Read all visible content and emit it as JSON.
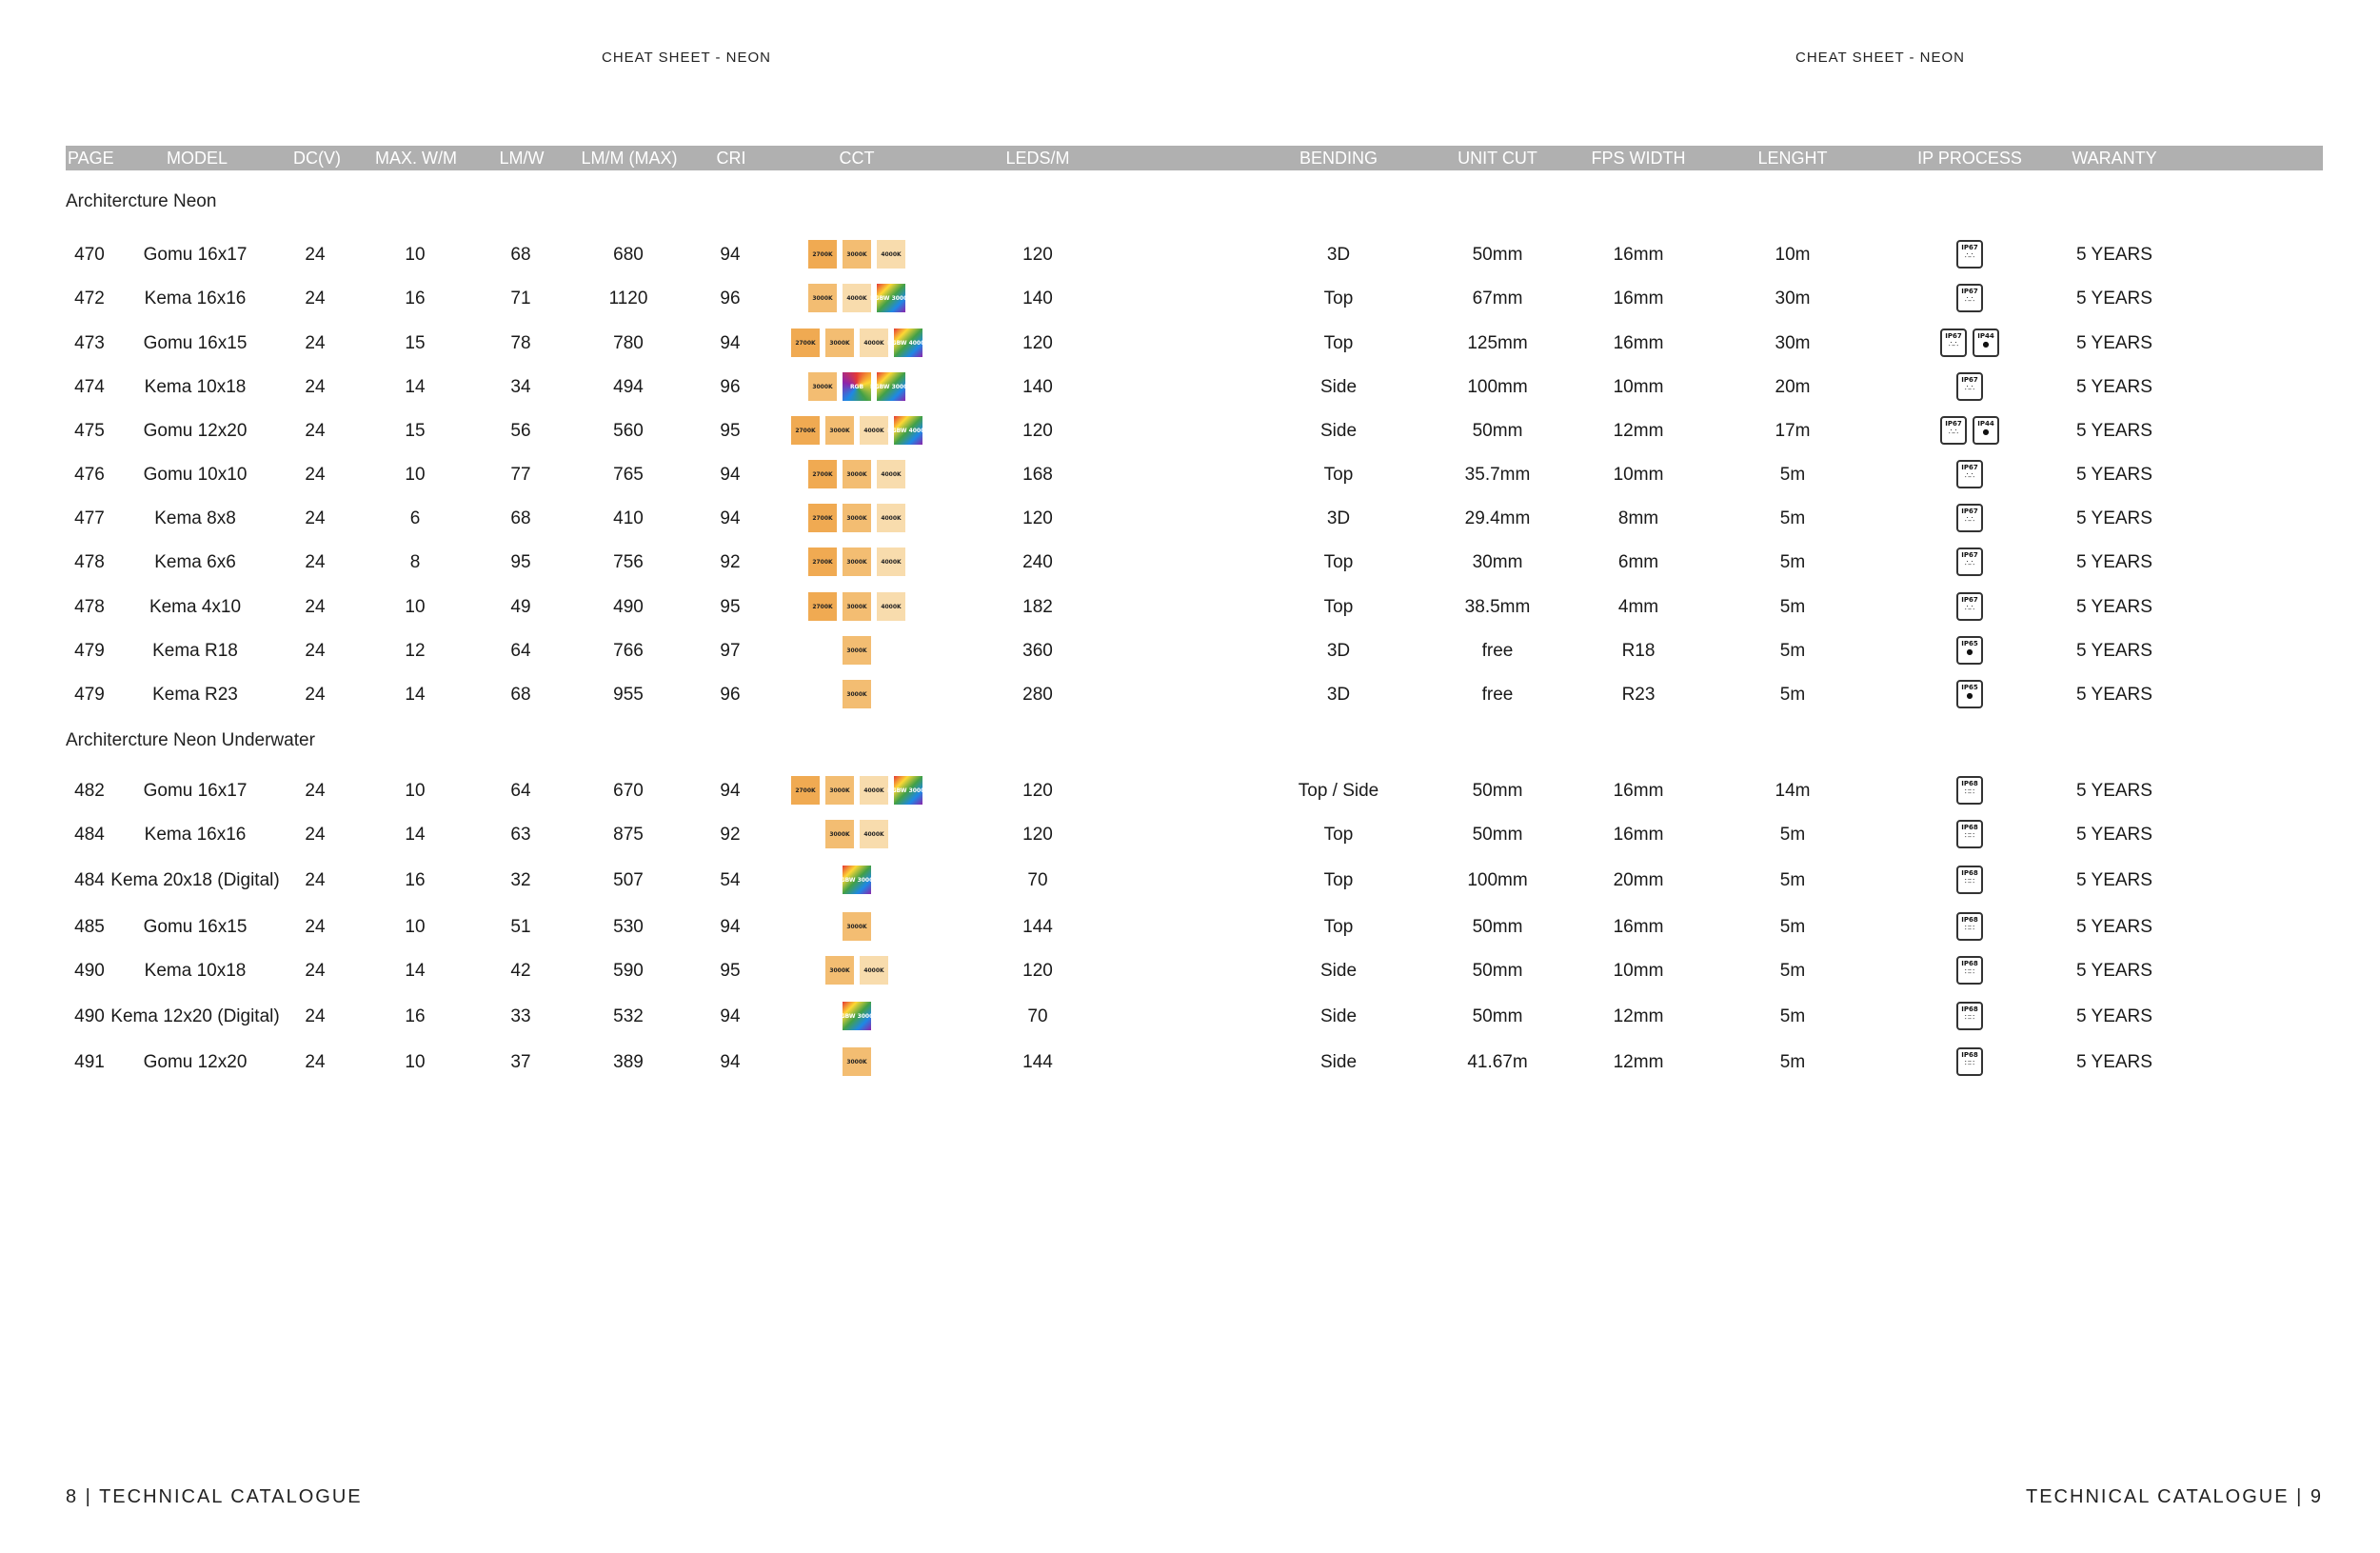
{
  "running_head_left": "CHEAT SHEET - NEON",
  "running_head_right": "CHEAT SHEET - NEON",
  "columns": [
    {
      "key": "page",
      "label": "PAGE"
    },
    {
      "key": "model",
      "label": "MODEL"
    },
    {
      "key": "dcv",
      "label": "DC(V)"
    },
    {
      "key": "maxw",
      "label": "MAX. W/M"
    },
    {
      "key": "lmw",
      "label": "LM/W"
    },
    {
      "key": "lmm",
      "label": "LM/M (MAX)"
    },
    {
      "key": "cri",
      "label": "CRI"
    },
    {
      "key": "cct",
      "label": "CCT"
    },
    {
      "key": "leds",
      "label": "LEDS/M"
    },
    {
      "key": "bending",
      "label": "BENDING"
    },
    {
      "key": "unitcut",
      "label": "UNIT CUT"
    },
    {
      "key": "fpswidth",
      "label": "FPS WIDTH"
    },
    {
      "key": "length",
      "label": "LENGHT"
    },
    {
      "key": "ip",
      "label": "IP PROCESS"
    },
    {
      "key": "warranty",
      "label": "WARANTY"
    }
  ],
  "sections": [
    {
      "title": "Architercture Neon",
      "rows": [
        {
          "page": "470",
          "model": "Gomu 16x17",
          "dcv": "24",
          "maxw": "10",
          "lmw": "68",
          "lmm": "680",
          "cri": "94",
          "cct": [
            "2700K",
            "3000K",
            "4000K"
          ],
          "leds": "120",
          "bending": "3D",
          "unitcut": "50mm",
          "fpswidth": "16mm",
          "length": "10m",
          "ip": [
            "IP67"
          ],
          "warranty": "5 YEARS"
        },
        {
          "page": "472",
          "model": "Kema 16x16",
          "dcv": "24",
          "maxw": "16",
          "lmw": "71",
          "lmm": "1120",
          "cri": "96",
          "cct": [
            "3000K",
            "4000K",
            "RGBW 3000K"
          ],
          "leds": "140",
          "bending": "Top",
          "unitcut": "67mm",
          "fpswidth": "16mm",
          "length": "30m",
          "ip": [
            "IP67"
          ],
          "warranty": "5 YEARS"
        },
        {
          "page": "473",
          "model": "Gomu 16x15",
          "dcv": "24",
          "maxw": "15",
          "lmw": "78",
          "lmm": "780",
          "cri": "94",
          "cct": [
            "2700K",
            "3000K",
            "4000K",
            "RGBW 4000K"
          ],
          "leds": "120",
          "bending": "Top",
          "unitcut": "125mm",
          "fpswidth": "16mm",
          "length": "30m",
          "ip": [
            "IP67",
            "IP44"
          ],
          "warranty": "5 YEARS"
        },
        {
          "page": "474",
          "model": "Kema 10x18",
          "dcv": "24",
          "maxw": "14",
          "lmw": "34",
          "lmm": "494",
          "cri": "96",
          "cct": [
            "3000K",
            "RGB",
            "RGBW 3000K"
          ],
          "leds": "140",
          "bending": "Side",
          "unitcut": "100mm",
          "fpswidth": "10mm",
          "length": "20m",
          "ip": [
            "IP67"
          ],
          "warranty": "5 YEARS"
        },
        {
          "page": "475",
          "model": "Gomu 12x20",
          "dcv": "24",
          "maxw": "15",
          "lmw": "56",
          "lmm": "560",
          "cri": "95",
          "cct": [
            "2700K",
            "3000K",
            "4000K",
            "RGBW 4000K"
          ],
          "leds": "120",
          "bending": "Side",
          "unitcut": "50mm",
          "fpswidth": "12mm",
          "length": "17m",
          "ip": [
            "IP67",
            "IP44"
          ],
          "warranty": "5 YEARS"
        },
        {
          "page": "476",
          "model": "Gomu 10x10",
          "dcv": "24",
          "maxw": "10",
          "lmw": "77",
          "lmm": "765",
          "cri": "94",
          "cct": [
            "2700K",
            "3000K",
            "4000K"
          ],
          "leds": "168",
          "bending": "Top",
          "unitcut": "35.7mm",
          "fpswidth": "10mm",
          "length": "5m",
          "ip": [
            "IP67"
          ],
          "warranty": "5 YEARS"
        },
        {
          "page": "477",
          "model": "Kema 8x8",
          "dcv": "24",
          "maxw": "6",
          "lmw": "68",
          "lmm": "410",
          "cri": "94",
          "cct": [
            "2700K",
            "3000K",
            "4000K"
          ],
          "leds": "120",
          "bending": "3D",
          "unitcut": "29.4mm",
          "fpswidth": "8mm",
          "length": "5m",
          "ip": [
            "IP67"
          ],
          "warranty": "5 YEARS"
        },
        {
          "page": "478",
          "model": "Kema 6x6",
          "dcv": "24",
          "maxw": "8",
          "lmw": "95",
          "lmm": "756",
          "cri": "92",
          "cct": [
            "2700K",
            "3000K",
            "4000K"
          ],
          "leds": "240",
          "bending": "Top",
          "unitcut": "30mm",
          "fpswidth": "6mm",
          "length": "5m",
          "ip": [
            "IP67"
          ],
          "warranty": "5 YEARS"
        },
        {
          "page": "478",
          "model": "Kema 4x10",
          "dcv": "24",
          "maxw": "10",
          "lmw": "49",
          "lmm": "490",
          "cri": "95",
          "cct": [
            "2700K",
            "3000K",
            "4000K"
          ],
          "leds": "182",
          "bending": "Top",
          "unitcut": "38.5mm",
          "fpswidth": "4mm",
          "length": "5m",
          "ip": [
            "IP67"
          ],
          "warranty": "5 YEARS"
        },
        {
          "page": "479",
          "model": "Kema R18",
          "dcv": "24",
          "maxw": "12",
          "lmw": "64",
          "lmm": "766",
          "cri": "97",
          "cct": [
            "3000K"
          ],
          "leds": "360",
          "bending": "3D",
          "unitcut": "free",
          "fpswidth": "R18",
          "length": "5m",
          "ip": [
            "IP65"
          ],
          "warranty": "5 YEARS"
        },
        {
          "page": "479",
          "model": "Kema R23",
          "dcv": "24",
          "maxw": "14",
          "lmw": "68",
          "lmm": "955",
          "cri": "96",
          "cct": [
            "3000K"
          ],
          "leds": "280",
          "bending": "3D",
          "unitcut": "free",
          "fpswidth": "R23",
          "length": "5m",
          "ip": [
            "IP65"
          ],
          "warranty": "5 YEARS"
        }
      ]
    },
    {
      "title": "Architercture Neon Underwater",
      "rows": [
        {
          "page": "482",
          "model": "Gomu 16x17",
          "dcv": "24",
          "maxw": "10",
          "lmw": "64",
          "lmm": "670",
          "cri": "94",
          "cct": [
            "2700K",
            "3000K",
            "4000K",
            "RGBW 3000K"
          ],
          "leds": "120",
          "bending": "Top / Side",
          "unitcut": "50mm",
          "fpswidth": "16mm",
          "length": "14m",
          "ip": [
            "IP68"
          ],
          "warranty": "5 YEARS"
        },
        {
          "page": "484",
          "model": "Kema 16x16",
          "dcv": "24",
          "maxw": "14",
          "lmw": "63",
          "lmm": "875",
          "cri": "92",
          "cct": [
            "3000K",
            "4000K"
          ],
          "leds": "120",
          "bending": "Top",
          "unitcut": "50mm",
          "fpswidth": "16mm",
          "length": "5m",
          "ip": [
            "IP68"
          ],
          "warranty": "5 YEARS"
        },
        {
          "page": "484",
          "model": "Kema 20x18 (Digital)",
          "dcv": "24",
          "maxw": "16",
          "lmw": "32",
          "lmm": "507",
          "cri": "54",
          "cct": [
            "RGBW 3000K"
          ],
          "leds": "70",
          "bending": "Top",
          "unitcut": "100mm",
          "fpswidth": "20mm",
          "length": "5m",
          "ip": [
            "IP68"
          ],
          "warranty": "5 YEARS"
        },
        {
          "page": "485",
          "model": "Gomu 16x15",
          "dcv": "24",
          "maxw": "10",
          "lmw": "51",
          "lmm": "530",
          "cri": "94",
          "cct": [
            "3000K"
          ],
          "leds": "144",
          "bending": "Top",
          "unitcut": "50mm",
          "fpswidth": "16mm",
          "length": "5m",
          "ip": [
            "IP68"
          ],
          "warranty": "5 YEARS"
        },
        {
          "page": "490",
          "model": "Kema 10x18",
          "dcv": "24",
          "maxw": "14",
          "lmw": "42",
          "lmm": "590",
          "cri": "95",
          "cct": [
            "3000K",
            "4000K"
          ],
          "leds": "120",
          "bending": "Side",
          "unitcut": "50mm",
          "fpswidth": "10mm",
          "length": "5m",
          "ip": [
            "IP68"
          ],
          "warranty": "5 YEARS"
        },
        {
          "page": "490",
          "model": "Kema 12x20 (Digital)",
          "dcv": "24",
          "maxw": "16",
          "lmw": "33",
          "lmm": "532",
          "cri": "94",
          "cct": [
            "RGBW 3000K"
          ],
          "leds": "70",
          "bending": "Side",
          "unitcut": "50mm",
          "fpswidth": "12mm",
          "length": "5m",
          "ip": [
            "IP68"
          ],
          "warranty": "5 YEARS"
        },
        {
          "page": "491",
          "model": "Gomu 12x20",
          "dcv": "24",
          "maxw": "10",
          "lmw": "37",
          "lmm": "389",
          "cri": "94",
          "cct": [
            "3000K"
          ],
          "leds": "144",
          "bending": "Side",
          "unitcut": "41.67m",
          "fpswidth": "12mm",
          "length": "5m",
          "ip": [
            "IP68"
          ],
          "warranty": "5 YEARS"
        }
      ]
    }
  ],
  "footer_left": "8 | TECHNICAL CATALOGUE",
  "footer_right": "TECHNICAL CATALOGUE | 9",
  "colors": {
    "header_bar": "#b0b0b0",
    "cct_2700": "#f0aa52",
    "cct_3000": "#f3bd72",
    "cct_4000": "#f8dcad"
  }
}
